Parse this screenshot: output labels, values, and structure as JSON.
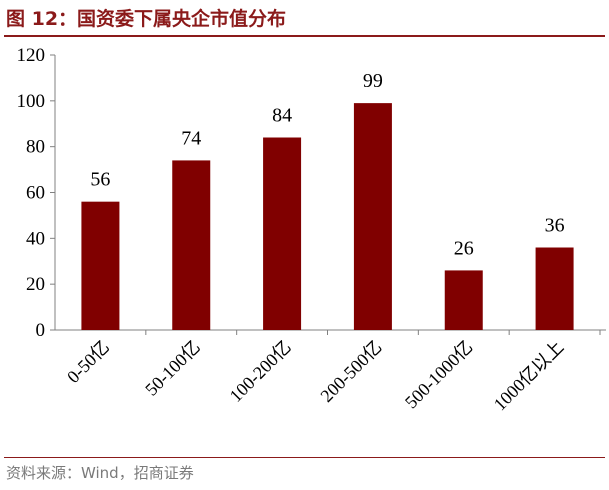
{
  "figure": {
    "title": "图 12：国资委下属央企市值分布",
    "source": "资料来源：Wind，招商证券"
  },
  "colors": {
    "accent": "#8b1a1a",
    "bar": "#800000",
    "axis": "#808080",
    "source_text": "#7a7a7a"
  },
  "chart_data": {
    "type": "bar",
    "categories": [
      "0-50亿",
      "50-100亿",
      "100-200亿",
      "200-500亿",
      "500-1000亿",
      "1000亿以上"
    ],
    "values": [
      56,
      74,
      84,
      99,
      26,
      36
    ],
    "title": "",
    "xlabel": "",
    "ylabel": "",
    "ylim": [
      0,
      120
    ],
    "yticks": [
      0,
      20,
      40,
      60,
      80,
      100,
      120
    ],
    "grid": false,
    "legend": "none",
    "data_labels": true
  }
}
